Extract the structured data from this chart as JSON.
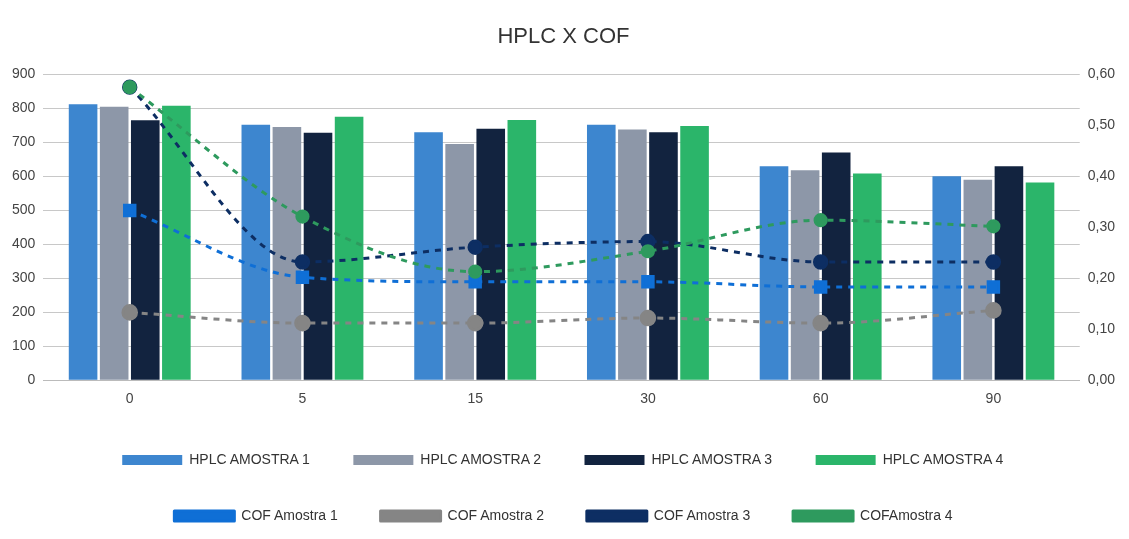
{
  "chart_data": {
    "type": "bar",
    "title": "HPLC X COF",
    "categories": [
      "0",
      "5",
      "15",
      "30",
      "60",
      "90"
    ],
    "series": [
      {
        "name": "HPLC AMOSTRA 1",
        "color": "#3d86cf",
        "values": [
          812,
          752,
          730,
          752,
          630,
          600
        ]
      },
      {
        "name": "HPLC AMOSTRA 2",
        "color": "#8d97a8",
        "values": [
          805,
          745,
          695,
          738,
          618,
          590
        ]
      },
      {
        "name": "HPLC AMOSTRA 3",
        "color": "#12233f",
        "values": [
          765,
          728,
          740,
          730,
          670,
          630
        ]
      },
      {
        "name": "HPLC AMOSTRA 4",
        "color": "#2bb56a",
        "values": [
          808,
          775,
          766,
          748,
          608,
          582
        ]
      },
      {
        "name": "COF Amostra 1",
        "type": "line",
        "axis": "y2",
        "marker": "square",
        "line_style": "dashed",
        "color": "#0f6fd6",
        "values": [
          0.333,
          0.202,
          0.193,
          0.193,
          0.183,
          0.183
        ]
      },
      {
        "name": "COF Amostra 2",
        "type": "line",
        "axis": "y2",
        "marker": "circle",
        "line_style": "dashed",
        "color": "#858585",
        "values": [
          0.133,
          0.112,
          0.112,
          0.122,
          0.112,
          0.137
        ]
      },
      {
        "name": "COF Amostra 3",
        "type": "line",
        "axis": "y2",
        "marker": "circle",
        "line_style": "dashed",
        "color": "#0d2e63",
        "values": [
          0.575,
          0.232,
          0.261,
          0.272,
          0.232,
          0.232
        ]
      },
      {
        "name": "COFAmostra 4",
        "type": "line",
        "axis": "y2",
        "marker": "circle",
        "line_style": "dashed",
        "color": "#2e9a5e",
        "values": [
          0.575,
          0.321,
          0.213,
          0.253,
          0.314,
          0.302
        ]
      }
    ],
    "ylim": [
      0,
      900
    ],
    "yticks": [
      0,
      100,
      200,
      300,
      400,
      500,
      600,
      700,
      800,
      900
    ],
    "y2lim": [
      0,
      0.6
    ],
    "y2ticks": [
      {
        "value": 0,
        "label": "0,00"
      },
      {
        "value": 0.1,
        "label": "0,10"
      },
      {
        "value": 0.2,
        "label": "0,20"
      },
      {
        "value": 0.3,
        "label": "0,30"
      },
      {
        "value": 0.4,
        "label": "0,40"
      },
      {
        "value": 0.5,
        "label": "0,50"
      },
      {
        "value": 0.6,
        "label": "0,60"
      }
    ],
    "grid": "y",
    "legend": "bottom"
  }
}
